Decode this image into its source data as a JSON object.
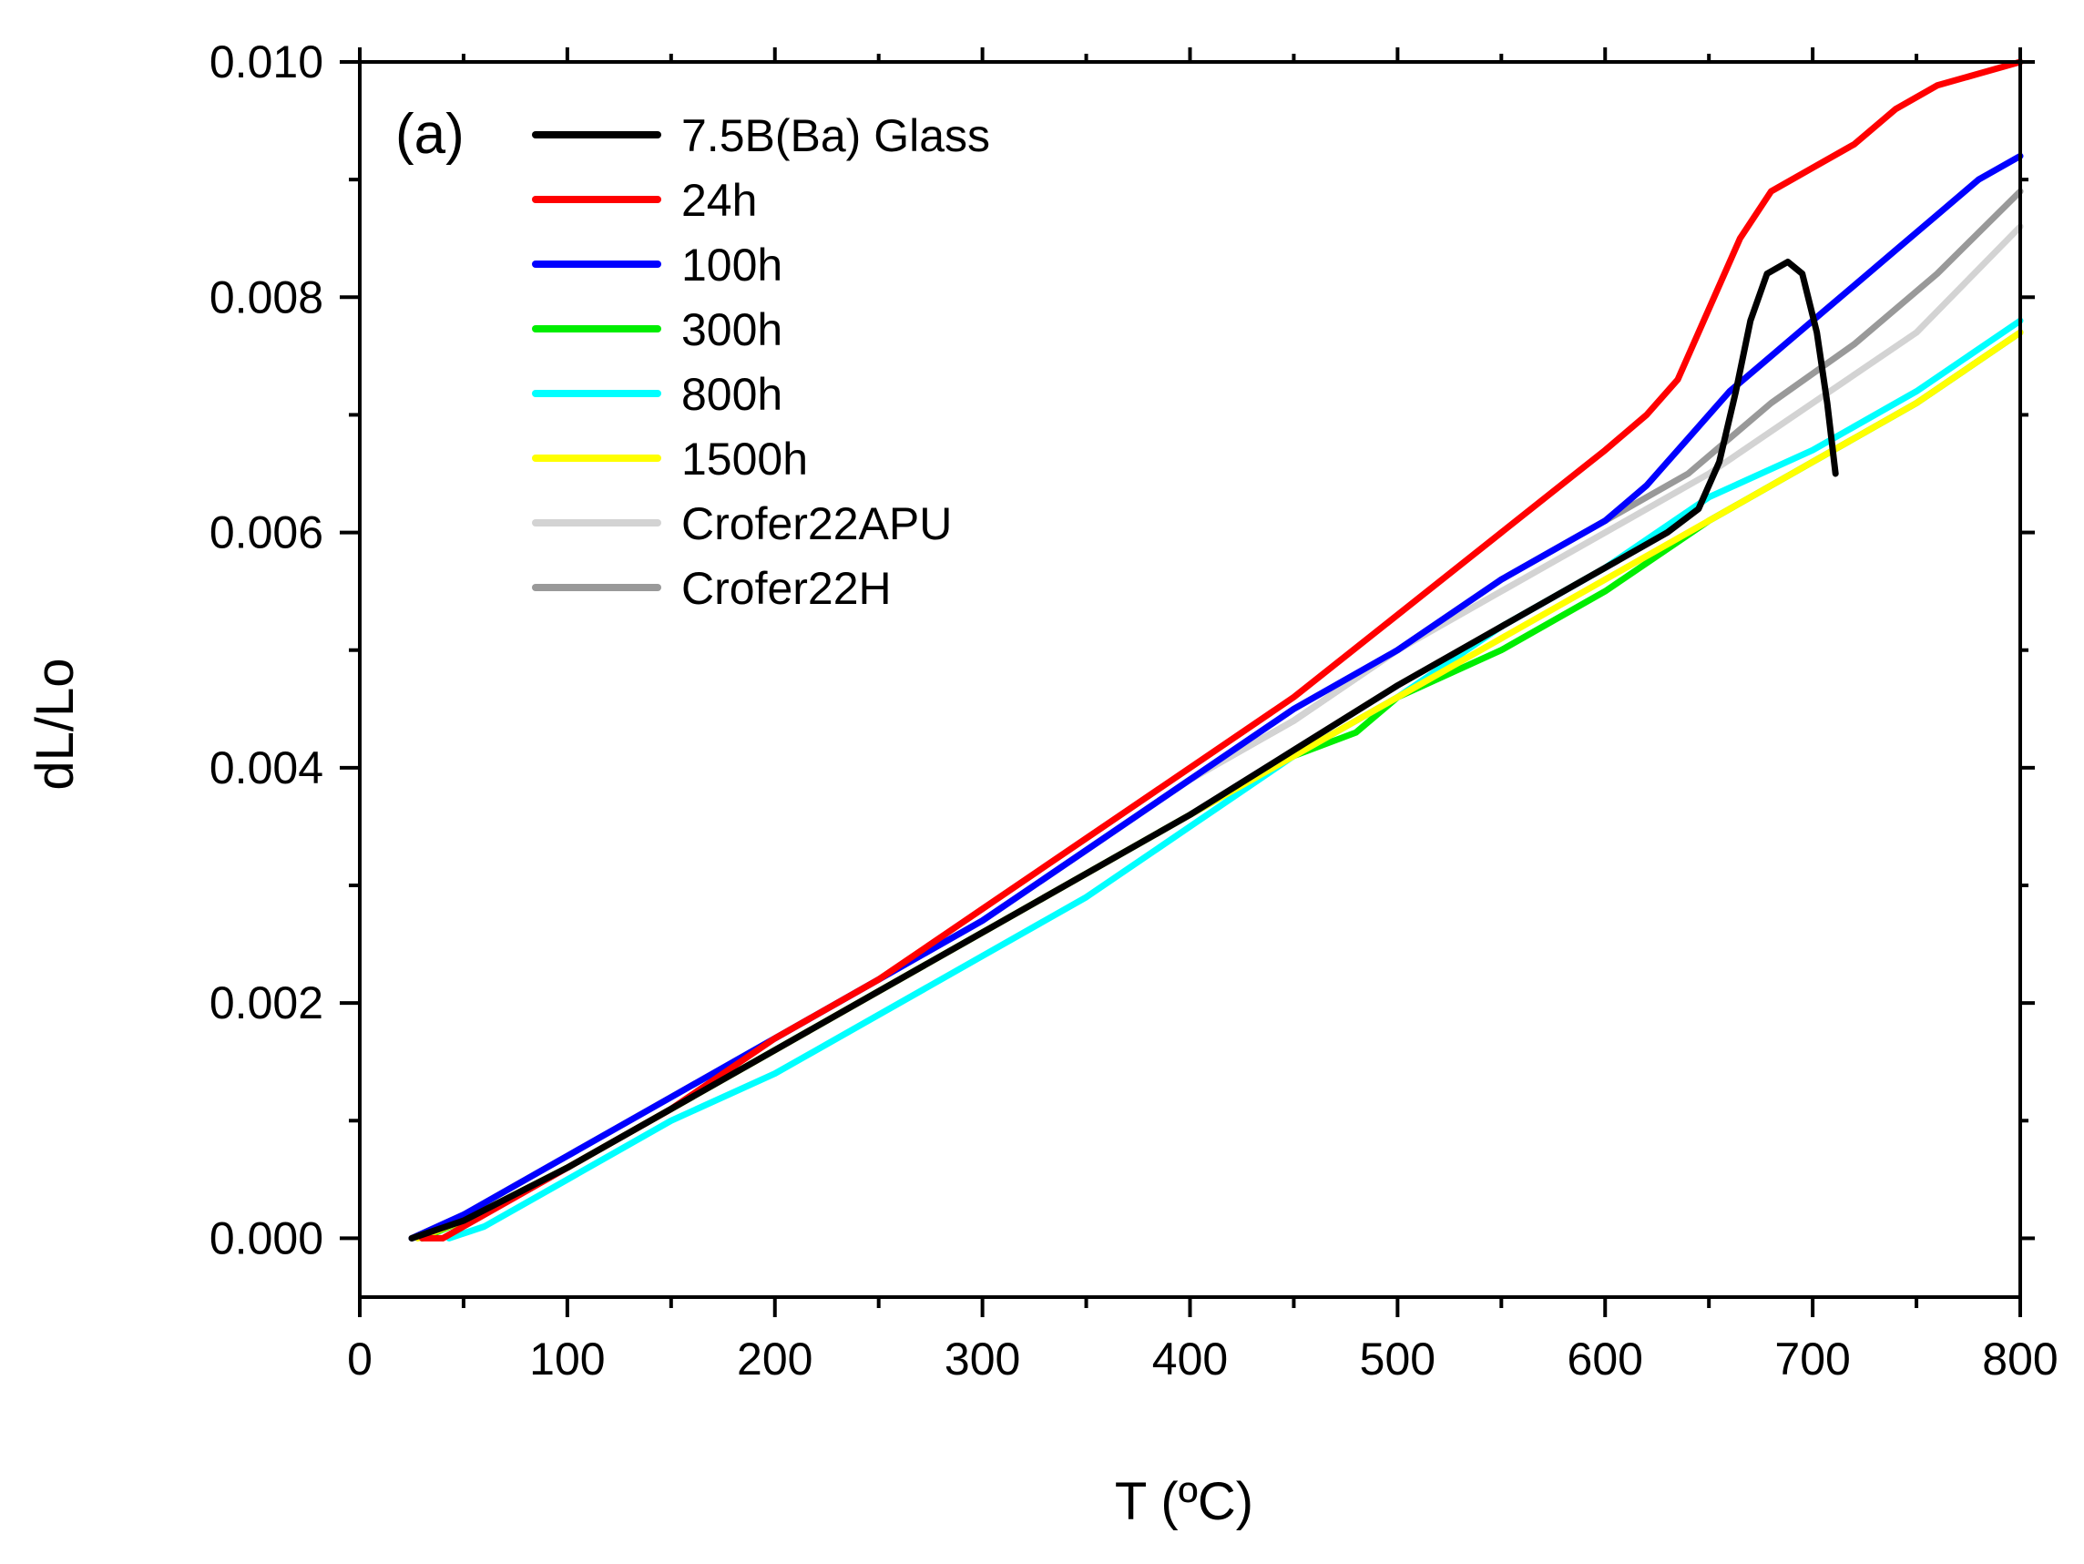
{
  "chart_data": {
    "type": "line",
    "panel_label": "(a)",
    "xlabel": "T (ºC)",
    "ylabel": "dL/Lo",
    "xlim": [
      0,
      800
    ],
    "ylim": [
      -0.0005,
      0.01
    ],
    "x_ticks": [
      0,
      100,
      200,
      300,
      400,
      500,
      600,
      700,
      800
    ],
    "x_tick_labels": [
      "0",
      "100",
      "200",
      "300",
      "400",
      "500",
      "600",
      "700",
      "800"
    ],
    "y_ticks": [
      0.0,
      0.002,
      0.004,
      0.006,
      0.008,
      0.01
    ],
    "y_tick_labels": [
      "0.000",
      "0.002",
      "0.004",
      "0.006",
      "0.008",
      "0.010"
    ],
    "legend_position": "top-left",
    "grid": false,
    "series": [
      {
        "name": "7.5B(Ba) Glass",
        "color": "#000000",
        "points": [
          [
            25,
            0.0
          ],
          [
            50,
            0.00015
          ],
          [
            100,
            0.0006
          ],
          [
            150,
            0.0011
          ],
          [
            200,
            0.0016
          ],
          [
            250,
            0.0021
          ],
          [
            300,
            0.0026
          ],
          [
            350,
            0.0031
          ],
          [
            400,
            0.0036
          ],
          [
            450,
            0.00415
          ],
          [
            500,
            0.0047
          ],
          [
            550,
            0.0052
          ],
          [
            600,
            0.0057
          ],
          [
            630,
            0.006
          ],
          [
            645,
            0.0062
          ],
          [
            655,
            0.0066
          ],
          [
            663,
            0.0072
          ],
          [
            670,
            0.0078
          ],
          [
            678,
            0.0082
          ],
          [
            688,
            0.0083
          ],
          [
            695,
            0.0082
          ],
          [
            702,
            0.0077
          ],
          [
            707,
            0.0071
          ],
          [
            711,
            0.0065
          ]
        ]
      },
      {
        "name": "24h",
        "color": "#ff0000",
        "points": [
          [
            30,
            0.0
          ],
          [
            40,
            0.0
          ],
          [
            60,
            0.0002
          ],
          [
            100,
            0.0006
          ],
          [
            150,
            0.0011
          ],
          [
            200,
            0.0017
          ],
          [
            250,
            0.0022
          ],
          [
            300,
            0.0028
          ],
          [
            350,
            0.0034
          ],
          [
            400,
            0.004
          ],
          [
            450,
            0.0046
          ],
          [
            500,
            0.0053
          ],
          [
            550,
            0.006
          ],
          [
            600,
            0.0067
          ],
          [
            620,
            0.007
          ],
          [
            635,
            0.0073
          ],
          [
            650,
            0.0079
          ],
          [
            665,
            0.0085
          ],
          [
            680,
            0.0089
          ],
          [
            700,
            0.0091
          ],
          [
            720,
            0.0093
          ],
          [
            740,
            0.0096
          ],
          [
            760,
            0.0098
          ],
          [
            780,
            0.0099
          ],
          [
            800,
            0.01
          ]
        ]
      },
      {
        "name": "100h",
        "color": "#0000ff",
        "points": [
          [
            25,
            0.0
          ],
          [
            50,
            0.0002
          ],
          [
            100,
            0.0007
          ],
          [
            150,
            0.0012
          ],
          [
            200,
            0.0017
          ],
          [
            250,
            0.0022
          ],
          [
            300,
            0.0027
          ],
          [
            350,
            0.0033
          ],
          [
            400,
            0.0039
          ],
          [
            450,
            0.0045
          ],
          [
            500,
            0.005
          ],
          [
            550,
            0.0056
          ],
          [
            600,
            0.0061
          ],
          [
            620,
            0.0064
          ],
          [
            640,
            0.0068
          ],
          [
            660,
            0.0072
          ],
          [
            680,
            0.0075
          ],
          [
            700,
            0.0078
          ],
          [
            720,
            0.0081
          ],
          [
            740,
            0.0084
          ],
          [
            760,
            0.0087
          ],
          [
            780,
            0.009
          ],
          [
            800,
            0.0092
          ]
        ]
      },
      {
        "name": "300h",
        "color": "#00ee00",
        "points": [
          [
            30,
            0.0
          ],
          [
            50,
            0.00015
          ],
          [
            100,
            0.0006
          ],
          [
            150,
            0.0011
          ],
          [
            200,
            0.0016
          ],
          [
            250,
            0.0021
          ],
          [
            300,
            0.0026
          ],
          [
            350,
            0.0031
          ],
          [
            400,
            0.0036
          ],
          [
            450,
            0.0041
          ],
          [
            480,
            0.0043
          ],
          [
            500,
            0.0046
          ],
          [
            550,
            0.005
          ],
          [
            600,
            0.0055
          ],
          [
            650,
            0.0061
          ],
          [
            700,
            0.0066
          ],
          [
            750,
            0.0071
          ],
          [
            800,
            0.0077
          ]
        ]
      },
      {
        "name": "800h",
        "color": "#00ffff",
        "points": [
          [
            43,
            0.0
          ],
          [
            60,
            0.0001
          ],
          [
            100,
            0.0005
          ],
          [
            150,
            0.001
          ],
          [
            200,
            0.0014
          ],
          [
            250,
            0.0019
          ],
          [
            300,
            0.0024
          ],
          [
            350,
            0.0029
          ],
          [
            400,
            0.0035
          ],
          [
            450,
            0.0041
          ],
          [
            500,
            0.0046
          ],
          [
            550,
            0.0052
          ],
          [
            600,
            0.0057
          ],
          [
            650,
            0.0063
          ],
          [
            700,
            0.0067
          ],
          [
            750,
            0.0072
          ],
          [
            800,
            0.0078
          ]
        ]
      },
      {
        "name": "1500h",
        "color": "#ffff00",
        "points": [
          [
            28,
            0.0
          ],
          [
            50,
            0.00015
          ],
          [
            100,
            0.0006
          ],
          [
            150,
            0.0011
          ],
          [
            200,
            0.0016
          ],
          [
            250,
            0.0021
          ],
          [
            300,
            0.0026
          ],
          [
            350,
            0.0031
          ],
          [
            400,
            0.0036
          ],
          [
            450,
            0.0041
          ],
          [
            500,
            0.0046
          ],
          [
            550,
            0.0051
          ],
          [
            600,
            0.0056
          ],
          [
            650,
            0.0061
          ],
          [
            700,
            0.0066
          ],
          [
            750,
            0.0071
          ],
          [
            800,
            0.0077
          ]
        ]
      },
      {
        "name": "Crofer22APU",
        "color": "#d3d3d3",
        "points": [
          [
            25,
            0.0
          ],
          [
            50,
            0.0002
          ],
          [
            100,
            0.0007
          ],
          [
            150,
            0.0012
          ],
          [
            200,
            0.0017
          ],
          [
            250,
            0.0022
          ],
          [
            300,
            0.0027
          ],
          [
            350,
            0.0033
          ],
          [
            400,
            0.0039
          ],
          [
            450,
            0.0044
          ],
          [
            500,
            0.005
          ],
          [
            550,
            0.0055
          ],
          [
            600,
            0.006
          ],
          [
            650,
            0.0065
          ],
          [
            700,
            0.0071
          ],
          [
            750,
            0.0077
          ],
          [
            800,
            0.0086
          ]
        ]
      },
      {
        "name": "Crofer22H",
        "color": "#999999",
        "points": [
          [
            25,
            0.0
          ],
          [
            50,
            0.0002
          ],
          [
            100,
            0.0007
          ],
          [
            150,
            0.0012
          ],
          [
            200,
            0.0017
          ],
          [
            250,
            0.0022
          ],
          [
            300,
            0.0027
          ],
          [
            350,
            0.0033
          ],
          [
            400,
            0.0039
          ],
          [
            450,
            0.0044
          ],
          [
            500,
            0.005
          ],
          [
            550,
            0.0056
          ],
          [
            600,
            0.0061
          ],
          [
            640,
            0.0065
          ],
          [
            680,
            0.0071
          ],
          [
            720,
            0.0076
          ],
          [
            760,
            0.0082
          ],
          [
            800,
            0.0089
          ]
        ]
      }
    ]
  }
}
